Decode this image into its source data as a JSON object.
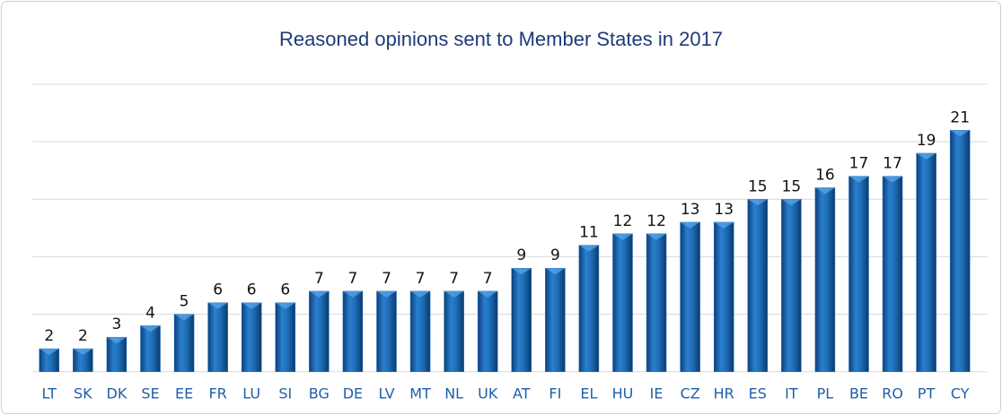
{
  "chart_data": {
    "type": "bar",
    "title": "Reasoned opinions sent to Member States in 2017",
    "categories": [
      "LT",
      "SK",
      "DK",
      "SE",
      "EE",
      "FR",
      "LU",
      "SI",
      "BG",
      "DE",
      "LV",
      "MT",
      "NL",
      "UK",
      "AT",
      "FI",
      "EL",
      "HU",
      "IE",
      "CZ",
      "HR",
      "ES",
      "IT",
      "PL",
      "BE",
      "RO",
      "PT",
      "CY"
    ],
    "values": [
      2,
      2,
      3,
      4,
      5,
      6,
      6,
      6,
      7,
      7,
      7,
      7,
      7,
      7,
      9,
      9,
      11,
      12,
      12,
      13,
      13,
      15,
      15,
      16,
      17,
      17,
      19,
      21
    ],
    "color": "#1f6fb8",
    "ylim": [
      0,
      25
    ],
    "yticks": [
      0,
      5,
      10,
      15,
      20,
      25
    ],
    "grid": true
  }
}
